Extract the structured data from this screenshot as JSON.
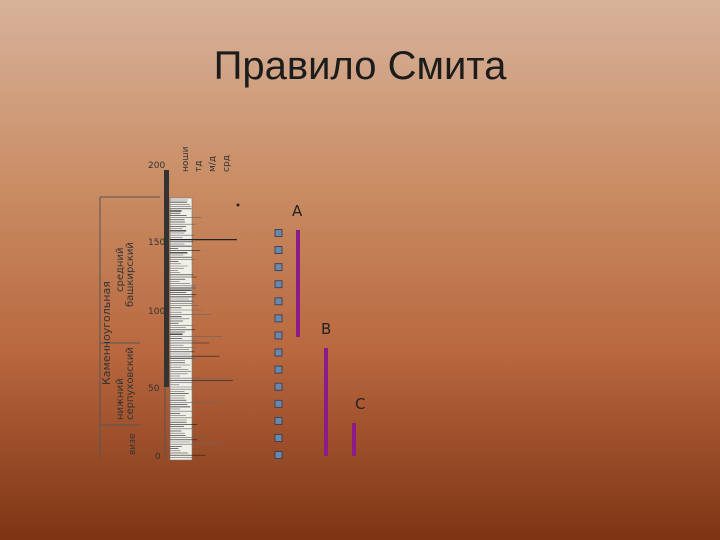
{
  "slide": {
    "title": "Правило Смита"
  },
  "column": {
    "header_labels": [
      "ноши",
      "тд",
      "м/д",
      "срд"
    ],
    "depth_ticks": [
      "200",
      "150",
      "100",
      "50",
      "0"
    ],
    "system_label": "Каменноугольная",
    "left_labels": [
      "средний",
      "нижний",
      "визе"
    ],
    "stage_labels": [
      "башкирский",
      "серпуховский"
    ]
  },
  "ranges": [
    {
      "label": "A",
      "color": "#8b1a8a"
    },
    {
      "label": "B",
      "color": "#8b1a8a"
    },
    {
      "label": "C",
      "color": "#8b1a8a"
    }
  ],
  "markers": {
    "count": 14,
    "fill": "#6d87a8"
  }
}
